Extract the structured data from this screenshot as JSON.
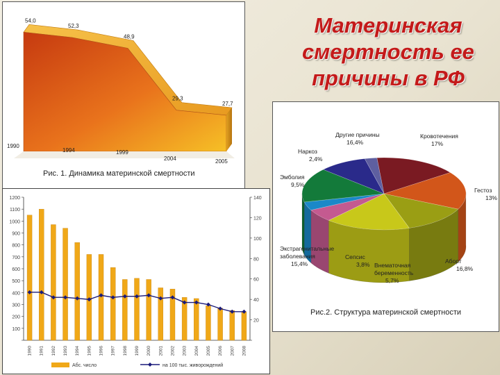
{
  "slide": {
    "title_lines": [
      "Материнская",
      "смертность ее",
      "причины в РФ"
    ],
    "title_color": "#c41a1a"
  },
  "chart_data": [
    {
      "type": "area",
      "caption": "Рис. 1. Динамика материнской смертности",
      "x": [
        "1990",
        "1994",
        "1999",
        "2004",
        "2005"
      ],
      "values": [
        54.0,
        52.3,
        48.9,
        29.3,
        27.7
      ],
      "value_labels": [
        "54,0",
        "52,3",
        "48,9",
        "29,3",
        "27,7"
      ],
      "colors": {
        "top": "#f2b030",
        "front_dark": "#c63a10",
        "front_light": "#f6b826"
      }
    },
    {
      "type": "pie",
      "caption": "Рис.2. Структура материнской смертности",
      "slices": [
        {
          "name": "Другие причины",
          "pct": "16,4%",
          "value": 16.4,
          "color": "#7a1a22"
        },
        {
          "name": "Кровотечения",
          "pct": "17%",
          "value": 17.0,
          "color": "#d2561a"
        },
        {
          "name": "Гестоз",
          "pct": "13%",
          "value": 13.0,
          "color": "#9a9e14"
        },
        {
          "name": "Аборт",
          "pct": "16,8%",
          "value": 16.8,
          "color": "#c8c81a"
        },
        {
          "name": "Внематочная беременность",
          "pct": "5,7%",
          "value": 5.7,
          "color": "#c45a90"
        },
        {
          "name": "Сепсис",
          "pct": "3,8%",
          "value": 3.8,
          "color": "#1a88c8"
        },
        {
          "name": "Экстрагенитальные заболевания",
          "pct": "15,4%",
          "value": 15.4,
          "color": "#137a3a"
        },
        {
          "name": "Эмболия",
          "pct": "9,5%",
          "value": 9.5,
          "color": "#2a2a8a"
        },
        {
          "name": "Наркоз",
          "pct": "2,4%",
          "value": 2.4,
          "color": "#5e5fa0"
        }
      ]
    },
    {
      "type": "bar",
      "left_axis": {
        "ticks": [
          "",
          "100",
          "200",
          "300",
          "400",
          "500",
          "600",
          "700",
          "800",
          "900",
          "1000",
          "1100",
          "1200"
        ],
        "range": [
          0,
          1200
        ]
      },
      "right_axis": {
        "ticks": [
          "",
          "20",
          "40",
          "60",
          "80",
          "100",
          "120",
          "140"
        ],
        "range": [
          0,
          140
        ]
      },
      "categories": [
        "1990",
        "1991",
        "1992",
        "1993",
        "1994",
        "1995",
        "1996",
        "1997",
        "1998",
        "1999",
        "2000",
        "2001",
        "2002",
        "2003",
        "2004",
        "2005",
        "2006",
        "2007",
        "2008"
      ],
      "series": [
        {
          "kind": "bar",
          "color": "#f0a818",
          "values": [
            1050,
            1100,
            970,
            940,
            820,
            720,
            720,
            610,
            510,
            520,
            510,
            440,
            430,
            360,
            350,
            290,
            270,
            250,
            240
          ]
        },
        {
          "kind": "line",
          "color": "#1a1a7a",
          "values": [
            47,
            47,
            42,
            42,
            41,
            40,
            44,
            42,
            43,
            43,
            44,
            41,
            42,
            37,
            37,
            35,
            31,
            28,
            28
          ]
        }
      ],
      "legend": [
        {
          "label": "Абс. число",
          "kind": "bar"
        },
        {
          "label": "на 100 тыс. живорождений",
          "kind": "line"
        }
      ]
    }
  ]
}
